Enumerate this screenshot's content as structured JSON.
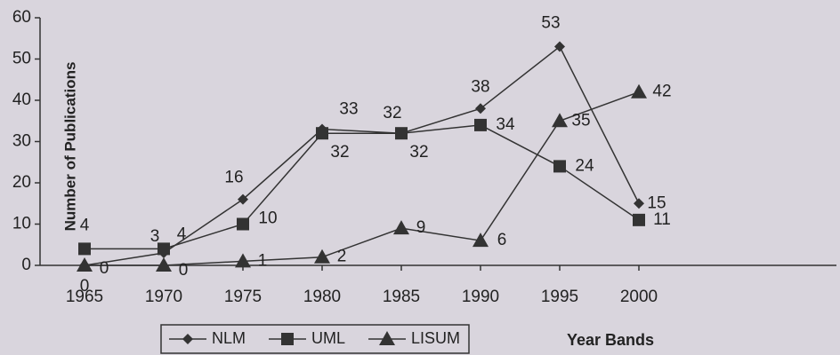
{
  "chart_data": {
    "type": "line",
    "y_label": "Number of Publications",
    "x_label": "Year Bands",
    "categories": [
      "1965",
      "1970",
      "1975",
      "1980",
      "1985",
      "1990",
      "1995",
      "2000"
    ],
    "series": [
      {
        "name": "NLM",
        "color": "#333333",
        "marker": "diamond",
        "values": [
          0,
          3,
          16,
          33,
          32,
          38,
          53,
          15
        ]
      },
      {
        "name": "UML",
        "color": "#333333",
        "marker": "square",
        "values": [
          4,
          4,
          10,
          32,
          32,
          34,
          24,
          11
        ]
      },
      {
        "name": "LISUM",
        "color": "#333333",
        "marker": "triangle",
        "values": [
          0,
          0,
          1,
          2,
          9,
          6,
          35,
          42
        ]
      }
    ],
    "ylim": [
      0,
      60
    ],
    "yticks": [
      0,
      10,
      20,
      30,
      40,
      50,
      60
    ],
    "grid": false
  }
}
